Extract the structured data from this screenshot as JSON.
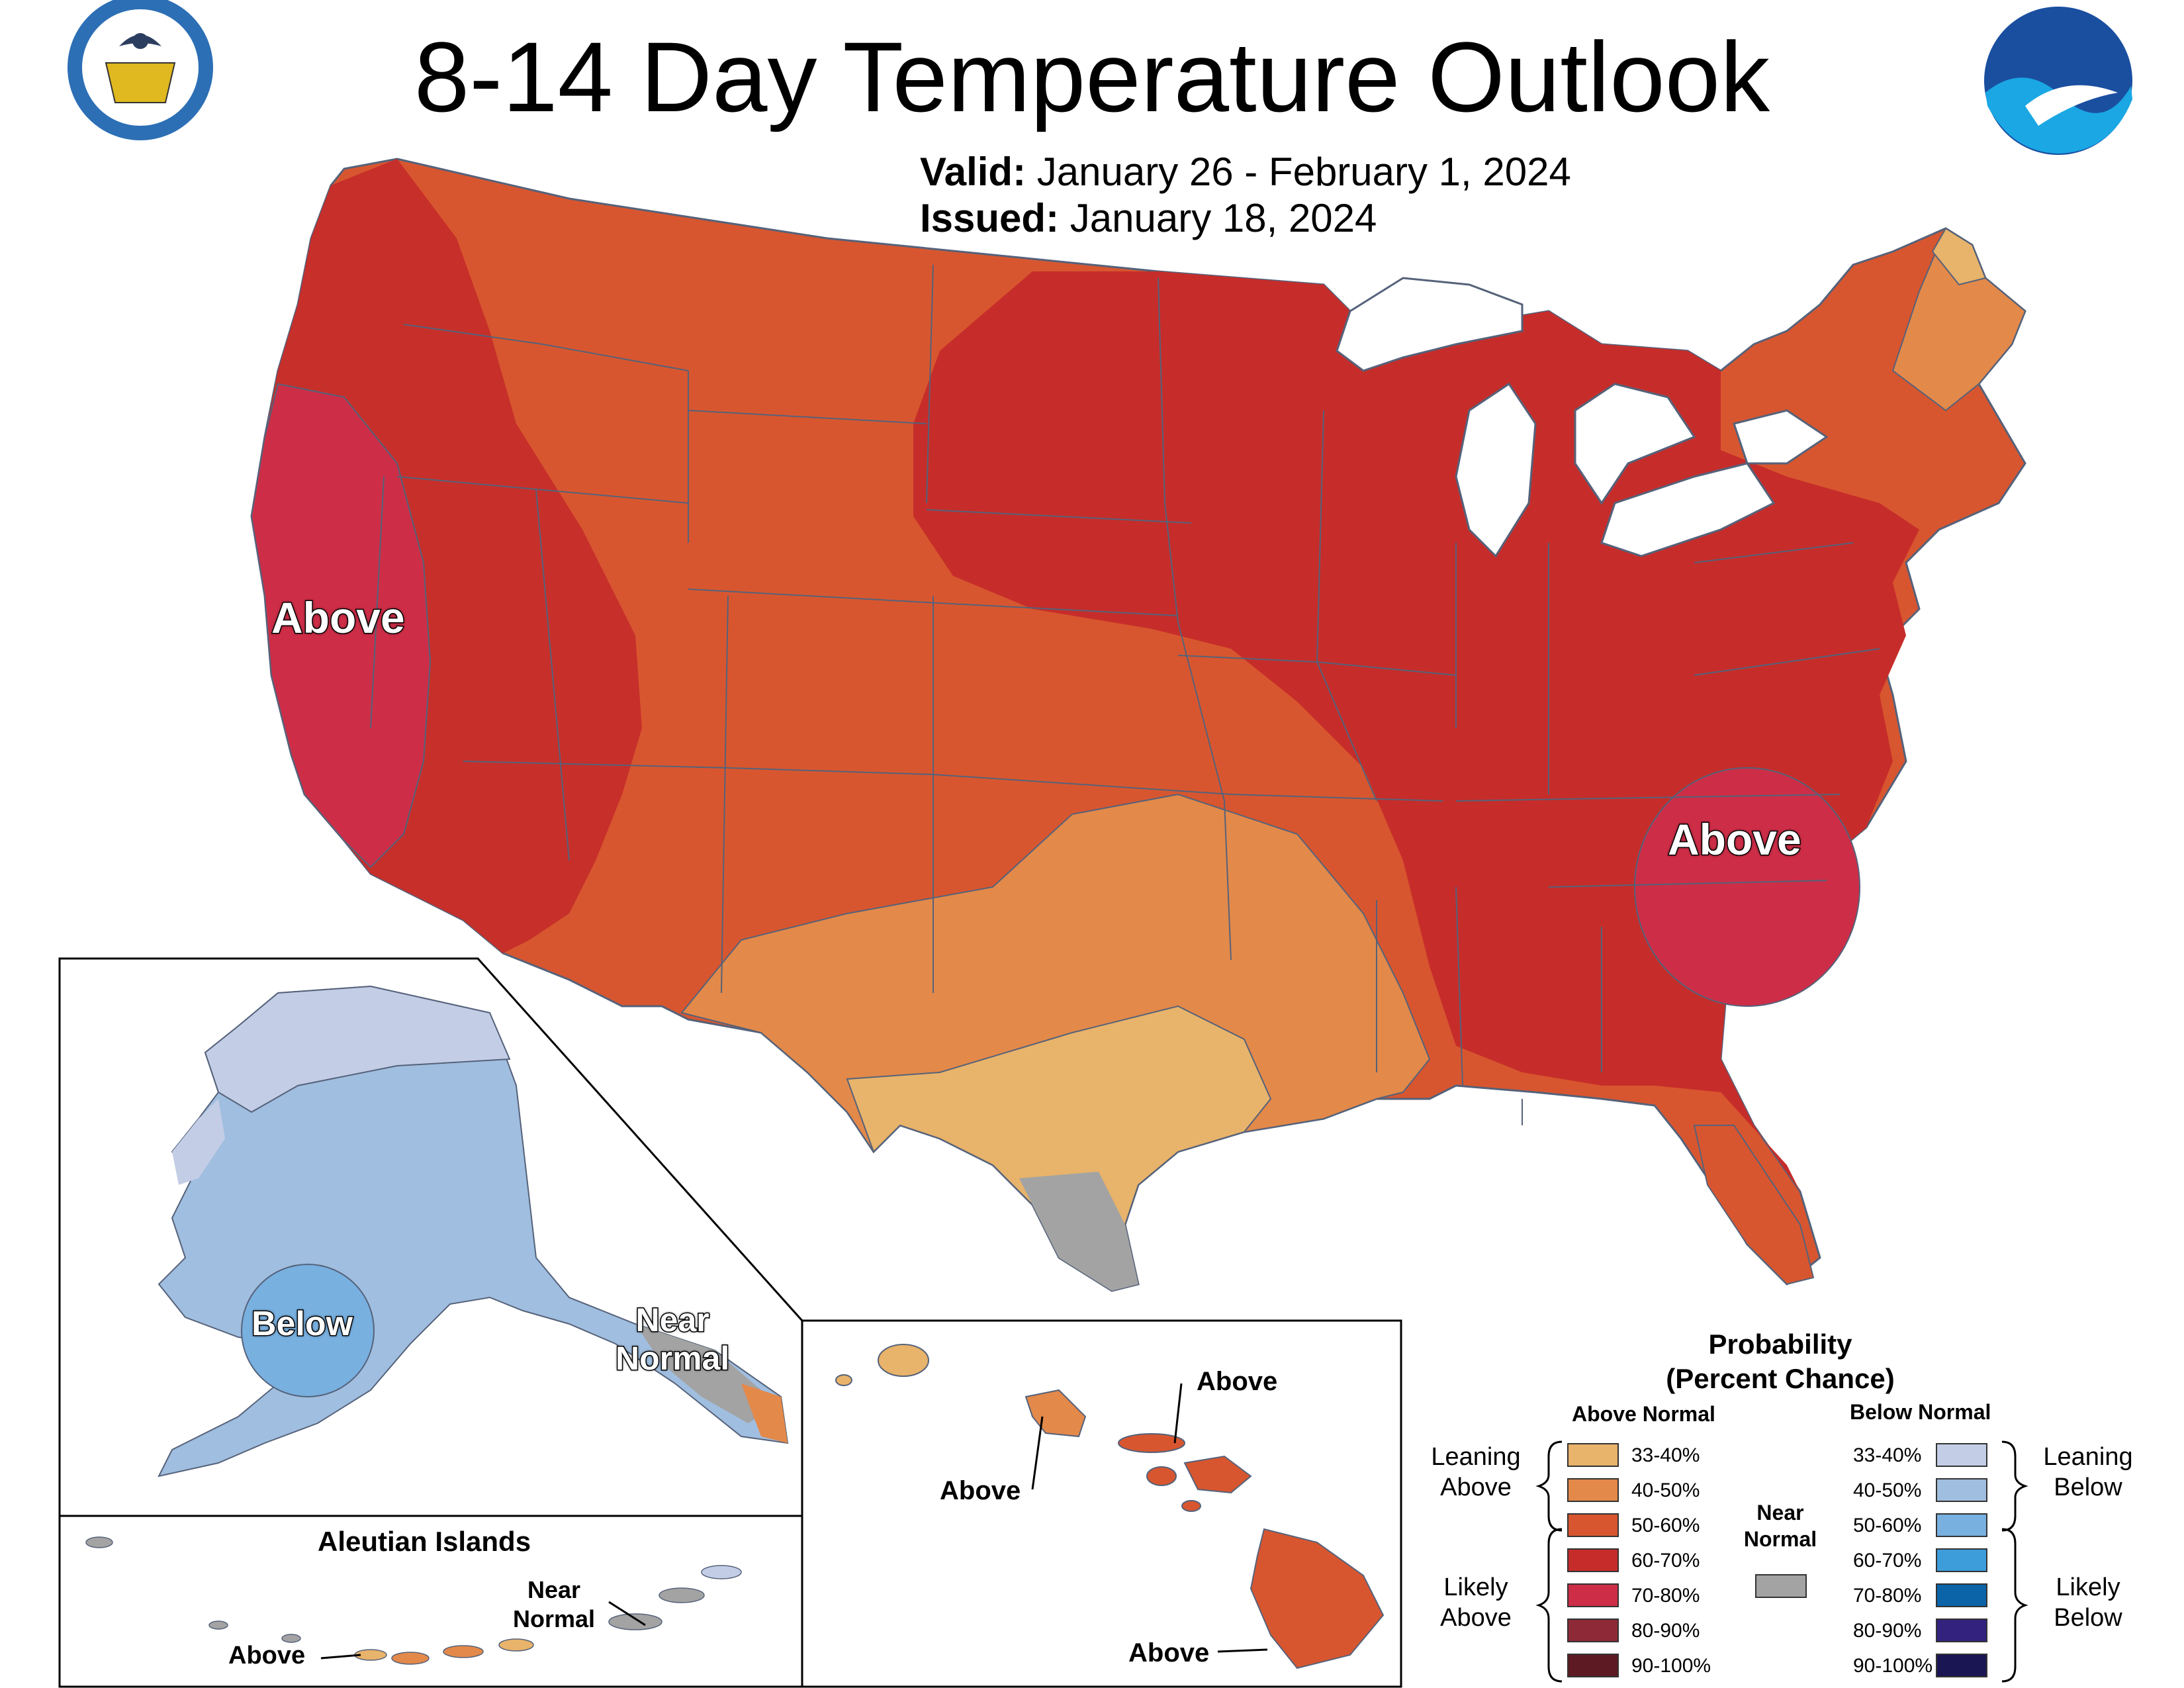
{
  "header": {
    "title": "8-14 Day Temperature Outlook",
    "valid_label": "Valid:",
    "valid_value": "January 26 - February 1, 2024",
    "issued_label": "Issued:",
    "issued_value": "January 18, 2024"
  },
  "logos": {
    "left": "DEPARTMENT OF COMMERCE · UNITED STATES OF AMERICA",
    "right": "NOAA"
  },
  "map_labels": {
    "west_coast": "Above",
    "southeast": "Above",
    "alaska_below": "Below",
    "alaska_near_normal": "Near\nNormal",
    "aleutian_title": "Aleutian Islands",
    "aleutian_near": "Near\nNormal",
    "aleutian_above": "Above",
    "hawaii_above_1": "Above",
    "hawaii_above_2": "Above",
    "hawaii_above_3": "Above"
  },
  "legend": {
    "title_line1": "Probability",
    "title_line2": "(Percent Chance)",
    "above_header": "Above Normal",
    "below_header": "Below Normal",
    "near_normal": "Near\nNormal",
    "leaning_above": "Leaning\nAbove",
    "likely_above": "Likely\nAbove",
    "leaning_below": "Leaning\nBelow",
    "likely_below": "Likely\nBelow",
    "above_rows": [
      {
        "label": "33-40%",
        "color": "#E8B36A"
      },
      {
        "label": "40-50%",
        "color": "#E3894A"
      },
      {
        "label": "50-60%",
        "color": "#D8562F"
      },
      {
        "label": "60-70%",
        "color": "#C62D2A"
      },
      {
        "label": "70-80%",
        "color": "#CD2D47"
      },
      {
        "label": "80-90%",
        "color": "#8E2A38"
      },
      {
        "label": "90-100%",
        "color": "#5E1A22"
      }
    ],
    "below_rows": [
      {
        "label": "33-40%",
        "color": "#C3CEE6"
      },
      {
        "label": "40-50%",
        "color": "#A0BEDF"
      },
      {
        "label": "50-60%",
        "color": "#78B0E0"
      },
      {
        "label": "60-70%",
        "color": "#3D9DDB"
      },
      {
        "label": "70-80%",
        "color": "#0B63A8"
      },
      {
        "label": "80-90%",
        "color": "#33227E"
      },
      {
        "label": "90-100%",
        "color": "#1A1553"
      }
    ],
    "near_color": "#A3A3A3"
  },
  "colors": {
    "a3340": "#E8B36A",
    "a4050": "#E3894A",
    "a5060": "#D8562F",
    "a6070": "#C62D2A",
    "a7080": "#CD2D47",
    "b3340": "#C3CEE6",
    "b4050": "#A0BEDF",
    "b5060": "#78B0E0",
    "near": "#A3A3A3",
    "border": "#55627a"
  }
}
